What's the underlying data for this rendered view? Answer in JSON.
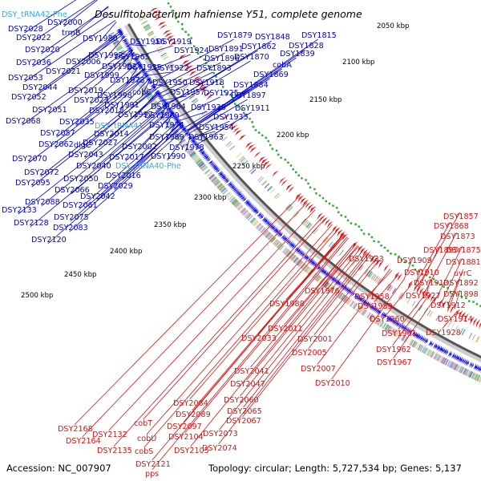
{
  "title": "Desulfitobacterium hafniense Y51, complete genome",
  "footer": {
    "accession": "Accession: NC_007907",
    "summary": "Topology: circular; Length: 5,727,534 bp; Genes: 5,137"
  },
  "corner_label": "DSY_tRNA42-Phe",
  "colors": {
    "forward_label": "#0000cc",
    "rna_label": "#33aadd",
    "reverse_label": "#dd1111",
    "forward_strand": "#0000ee",
    "reverse_strand": "#ee1111",
    "backbone": "#555555",
    "backbone_light": "#cccccc",
    "gc_dots": "#33aa33"
  },
  "ticks": [
    "2050 kbp",
    "2100 kbp",
    "2150 kbp",
    "2200 kbp",
    "2250 kbp",
    "2300 kbp",
    "2350 kbp",
    "2400 kbp",
    "2450 kbp",
    "2500 kbp"
  ],
  "forward_labels": [
    "DSY2000",
    "DSY2028",
    "trmB",
    "DSY2022",
    "DSY1980",
    "DSY1956",
    "DSY1919",
    "DSY1879",
    "DSY1848",
    "DSY1815",
    "DSY2020",
    "DSY1924",
    "DSY1891",
    "DSY1862",
    "DSY1828",
    "DSY2036",
    "DSY2006",
    "DSY1992",
    "DSY1965",
    "DSY1896",
    "DSY1870",
    "DSY1839",
    "DSY1982",
    "DSY1955",
    "DSY1922",
    "DSY1893",
    "cobA",
    "DSY2021",
    "DSY1999",
    "DSY1869",
    "DSY2053",
    "DSY1973",
    "DSY1950",
    "DSY1918",
    "DSY1884",
    "DSY2044",
    "DSY2019",
    "cobC",
    "DSY1957",
    "DSY1925",
    "DSY1897",
    "DSY2052",
    "DSY2023",
    "DSY1998",
    "DSY2051",
    "DSY1991",
    "DSY1964",
    "DSY1938",
    "DSY1911",
    "DSY2018",
    "DSY1997",
    "DSY1969",
    "DSY1935",
    "DSY2068",
    "DSY2035",
    "DSY1974",
    "DSY2057",
    "DSY2014",
    "DSY1954",
    "dlgC",
    "DSY1989",
    "DSY1963",
    "DSY2062",
    "DSY2027",
    "DSY2002",
    "DSY1978",
    "DSY2070",
    "DSY2043",
    "DSY2017",
    "DSY1990",
    "DSY2040",
    "DSY2072",
    "DSY2050",
    "DSY2016",
    "DSY2095",
    "DSY2066",
    "DSY2029",
    "DSY2042",
    "DSY2088",
    "DSY2061",
    "DSY2133",
    "DSY2075",
    "DSY2128",
    "DSY2083",
    "DSY2120"
  ],
  "rna_labels": [
    "DSY_tRNA41",
    "DSY_tRNA40-Phe"
  ],
  "reverse_labels": [
    "DSY1857",
    "DSY1868",
    "DSY1873",
    "DSY1895",
    "DSY1875",
    "DSY1933",
    "DSY1909",
    "DSY1881",
    "DSY1910",
    "uvrC",
    "DSY1913",
    "DSY1892",
    "DSY1976",
    "DSY1958",
    "DSY1927",
    "DSY1898",
    "DSY1988",
    "DSY1959",
    "DSY1912",
    "DSY1960",
    "DSY1914",
    "DSY1928",
    "DSY1961",
    "DSY2011",
    "DSY2001",
    "DSY2033",
    "DSY1962",
    "DSY2005",
    "DSY1967",
    "DSY2007",
    "DSY2010",
    "DSY2041",
    "DSY2047",
    "DSY2060",
    "DSY2084",
    "DSY2065",
    "DSY2089",
    "DSY2067",
    "cobT",
    "DSY2097",
    "DSY2073",
    "DSY2168",
    "DSY2132",
    "cobU",
    "DSY2104",
    "DSY2164",
    "DSY2074",
    "DSY2135",
    "cobS",
    "DSY2105",
    "DSY2121",
    "pps"
  ]
}
